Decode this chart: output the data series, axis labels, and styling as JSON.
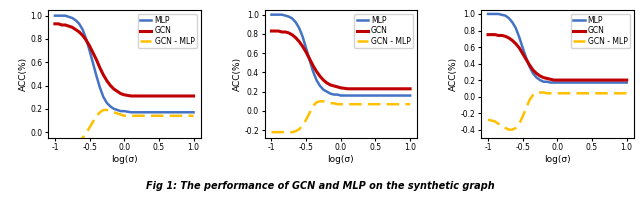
{
  "xlabel": "log(σ)",
  "ylabel": "ACC(%)",
  "caption": "Fig 1: The performance of GCN and MLP on the synthetic graph",
  "line_colors": {
    "MLP": "#4472c4",
    "GCN": "#c00000",
    "GCN_MLP": "#ffc000"
  },
  "line_widths": {
    "MLP": 1.8,
    "GCN": 2.2,
    "GCN_MLP": 1.8
  },
  "x": [
    -1.0,
    -0.95,
    -0.9,
    -0.85,
    -0.8,
    -0.75,
    -0.7,
    -0.65,
    -0.6,
    -0.55,
    -0.5,
    -0.45,
    -0.4,
    -0.35,
    -0.3,
    -0.25,
    -0.2,
    -0.15,
    -0.1,
    -0.05,
    0.0,
    0.1,
    0.2,
    0.3,
    0.4,
    0.5,
    0.6,
    0.7,
    0.8,
    0.9,
    1.0
  ],
  "subplots": [
    {
      "ylim": [
        -0.05,
        1.05
      ],
      "yticks": [
        0.0,
        0.2,
        0.4,
        0.6,
        0.8,
        1.0
      ],
      "MLP": [
        1.0,
        1.0,
        1.0,
        1.0,
        0.99,
        0.98,
        0.96,
        0.93,
        0.88,
        0.8,
        0.7,
        0.59,
        0.48,
        0.38,
        0.3,
        0.25,
        0.22,
        0.2,
        0.19,
        0.18,
        0.18,
        0.17,
        0.17,
        0.17,
        0.17,
        0.17,
        0.17,
        0.17,
        0.17,
        0.17,
        0.17
      ],
      "GCN": [
        0.93,
        0.93,
        0.92,
        0.92,
        0.91,
        0.9,
        0.88,
        0.86,
        0.83,
        0.79,
        0.74,
        0.68,
        0.62,
        0.55,
        0.49,
        0.44,
        0.4,
        0.37,
        0.35,
        0.33,
        0.32,
        0.31,
        0.31,
        0.31,
        0.31,
        0.31,
        0.31,
        0.31,
        0.31,
        0.31,
        0.31
      ],
      "GCN_MLP": [
        -0.07,
        -0.07,
        -0.08,
        -0.08,
        -0.08,
        -0.08,
        -0.08,
        -0.07,
        -0.05,
        -0.01,
        0.04,
        0.09,
        0.14,
        0.17,
        0.19,
        0.19,
        0.18,
        0.17,
        0.16,
        0.15,
        0.14,
        0.14,
        0.14,
        0.14,
        0.14,
        0.14,
        0.14,
        0.14,
        0.14,
        0.14,
        0.14
      ]
    },
    {
      "ylim": [
        -0.28,
        1.05
      ],
      "yticks": [
        -0.2,
        0.0,
        0.2,
        0.4,
        0.6,
        0.8,
        1.0
      ],
      "MLP": [
        1.0,
        1.0,
        1.0,
        1.0,
        0.99,
        0.98,
        0.96,
        0.92,
        0.86,
        0.77,
        0.65,
        0.53,
        0.41,
        0.32,
        0.26,
        0.22,
        0.2,
        0.18,
        0.17,
        0.17,
        0.16,
        0.16,
        0.16,
        0.16,
        0.16,
        0.16,
        0.16,
        0.16,
        0.16,
        0.16,
        0.16
      ],
      "GCN": [
        0.83,
        0.83,
        0.83,
        0.82,
        0.82,
        0.81,
        0.79,
        0.76,
        0.72,
        0.67,
        0.61,
        0.54,
        0.47,
        0.41,
        0.36,
        0.32,
        0.29,
        0.27,
        0.26,
        0.25,
        0.24,
        0.23,
        0.23,
        0.23,
        0.23,
        0.23,
        0.23,
        0.23,
        0.23,
        0.23,
        0.23
      ],
      "GCN_MLP": [
        -0.22,
        -0.22,
        -0.22,
        -0.22,
        -0.22,
        -0.22,
        -0.22,
        -0.21,
        -0.19,
        -0.15,
        -0.09,
        -0.02,
        0.05,
        0.09,
        0.1,
        0.1,
        0.09,
        0.08,
        0.08,
        0.07,
        0.07,
        0.07,
        0.07,
        0.07,
        0.07,
        0.07,
        0.07,
        0.07,
        0.07,
        0.07,
        0.07
      ]
    },
    {
      "ylim": [
        -0.5,
        1.05
      ],
      "yticks": [
        -0.4,
        -0.2,
        0.0,
        0.2,
        0.4,
        0.6,
        0.8,
        1.0
      ],
      "MLP": [
        1.0,
        1.0,
        1.0,
        1.0,
        0.99,
        0.98,
        0.95,
        0.9,
        0.83,
        0.72,
        0.59,
        0.47,
        0.36,
        0.28,
        0.23,
        0.2,
        0.18,
        0.18,
        0.17,
        0.17,
        0.17,
        0.17,
        0.17,
        0.17,
        0.17,
        0.17,
        0.17,
        0.17,
        0.17,
        0.17,
        0.17
      ],
      "GCN": [
        0.75,
        0.75,
        0.75,
        0.74,
        0.74,
        0.73,
        0.71,
        0.68,
        0.64,
        0.59,
        0.52,
        0.45,
        0.38,
        0.32,
        0.28,
        0.25,
        0.23,
        0.22,
        0.21,
        0.2,
        0.2,
        0.2,
        0.2,
        0.2,
        0.2,
        0.2,
        0.2,
        0.2,
        0.2,
        0.2,
        0.2
      ],
      "GCN_MLP": [
        -0.28,
        -0.29,
        -0.3,
        -0.33,
        -0.36,
        -0.38,
        -0.4,
        -0.4,
        -0.38,
        -0.33,
        -0.24,
        -0.14,
        -0.04,
        0.02,
        0.05,
        0.05,
        0.05,
        0.04,
        0.04,
        0.04,
        0.04,
        0.04,
        0.04,
        0.04,
        0.04,
        0.04,
        0.04,
        0.04,
        0.04,
        0.04,
        0.04
      ]
    }
  ]
}
